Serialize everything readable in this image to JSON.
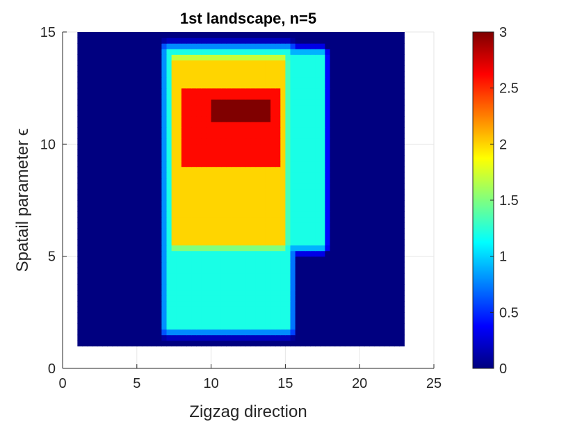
{
  "chart_data": {
    "type": "heatmap",
    "title": "1st landscape, n=5",
    "xlabel": "Zigzag direction",
    "ylabel": "Spatail parameter ϵ",
    "xlim": [
      0,
      25
    ],
    "ylim": [
      0,
      15
    ],
    "xticks": [
      "0",
      "5",
      "10",
      "15",
      "20",
      "25"
    ],
    "yticks": [
      "0",
      "5",
      "10",
      "15"
    ],
    "x_extent": [
      1,
      23
    ],
    "y_extent": [
      1,
      15
    ],
    "grid": "on",
    "colormap": "jet",
    "colorbar": {
      "range": [
        0,
        3
      ],
      "ticks": [
        "0",
        "0.5",
        "1",
        "1.5",
        "2",
        "2.5",
        "3"
      ]
    },
    "background_value": 0,
    "regions": [
      {
        "x": [
          7.0,
          15.3
        ],
        "y": [
          1.8,
          14.2
        ],
        "value": 1.2
      },
      {
        "x": [
          7.5,
          15.0
        ],
        "y": [
          5.5,
          13.8
        ],
        "value": 2.0
      },
      {
        "x": [
          8.0,
          14.5
        ],
        "y": [
          9.0,
          12.5
        ],
        "value": 2.6
      },
      {
        "x": [
          10.0,
          14.0
        ],
        "y": [
          11.0,
          12.0
        ],
        "value": 3.0
      },
      {
        "x": [
          15.0,
          17.5
        ],
        "y": [
          5.5,
          14.0
        ],
        "value": 1.2
      }
    ]
  },
  "colors": {
    "axes": "#262626",
    "grid": "#e6e6e6",
    "background": "#ffffff"
  }
}
